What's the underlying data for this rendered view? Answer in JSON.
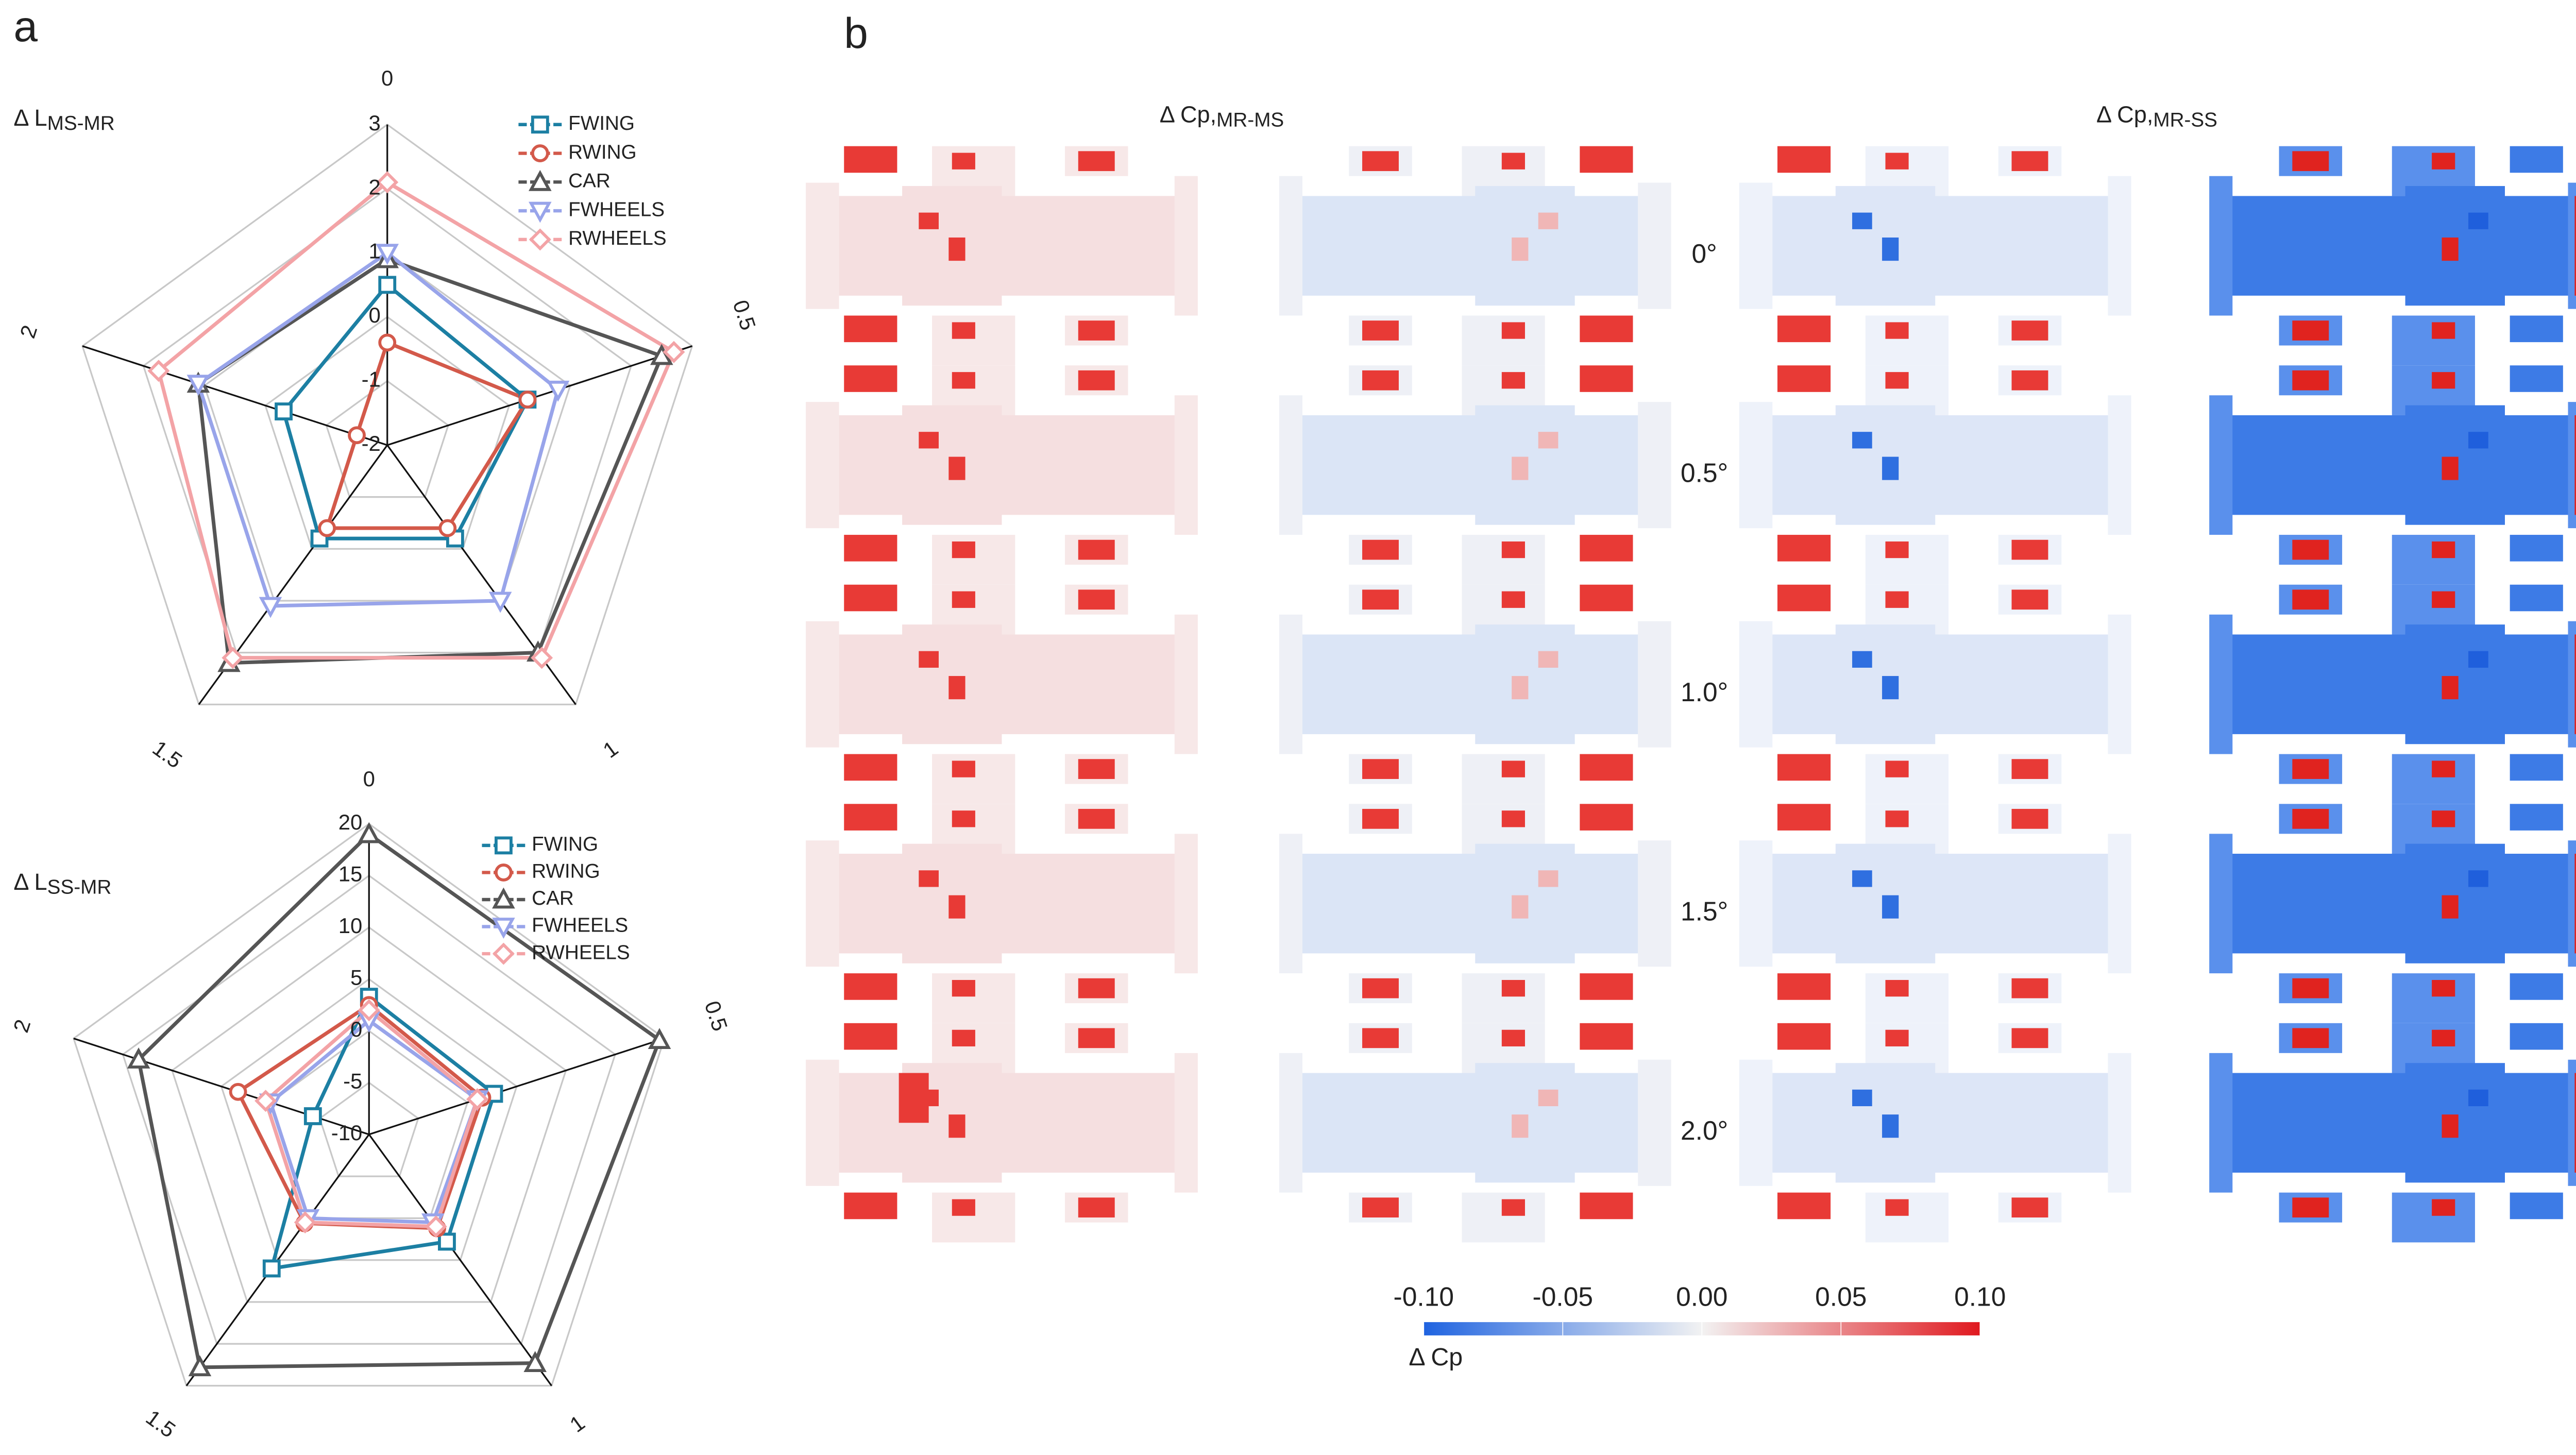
{
  "chart_data": [
    {
      "type": "radar",
      "title_main": "Δ L",
      "title_sub": "MS-MR",
      "categories": [
        "0",
        "0.5",
        "1",
        "1.5",
        "2"
      ],
      "ylim": [
        -2,
        3
      ],
      "yticks": [
        -2,
        -1,
        0,
        1,
        2,
        3
      ],
      "grid": true,
      "series": [
        {
          "name": "FWING",
          "color": "#1c7fa3",
          "marker": "square",
          "values": [
            0.5,
            0.3,
            -0.2,
            -0.2,
            -0.3
          ]
        },
        {
          "name": "RWING",
          "color": "#d3594a",
          "marker": "circle",
          "values": [
            -0.4,
            0.3,
            -0.4,
            -0.4,
            -1.5
          ]
        },
        {
          "name": "CAR",
          "color": "#555555",
          "marker": "triangle-up",
          "values": [
            0.9,
            2.5,
            2.0,
            2.2,
            1.1
          ]
        },
        {
          "name": "FWHEELS",
          "color": "#98a4ea",
          "marker": "triangle-down",
          "values": [
            1.0,
            0.8,
            1.0,
            1.1,
            1.1
          ]
        },
        {
          "name": "RWHEELS",
          "color": "#f3a3a6",
          "marker": "diamond",
          "values": [
            2.1,
            2.7,
            2.1,
            2.1,
            1.75
          ]
        }
      ]
    },
    {
      "type": "radar",
      "title_main": "Δ L",
      "title_sub": "SS-MR",
      "categories": [
        "0",
        "0.5",
        "1",
        "1.5",
        "2"
      ],
      "ylim": [
        -10,
        20
      ],
      "yticks": [
        -10,
        -5,
        0,
        5,
        10,
        15,
        20
      ],
      "grid": true,
      "series": [
        {
          "name": "FWING",
          "color": "#1c7fa3",
          "marker": "square",
          "values": [
            3.3,
            2.7,
            2.8,
            6,
            -4.3
          ]
        },
        {
          "name": "RWING",
          "color": "#d3594a",
          "marker": "circle",
          "values": [
            2.5,
            1.5,
            1.2,
            0.6,
            3.3
          ]
        },
        {
          "name": "CAR",
          "color": "#555555",
          "marker": "triangle-up",
          "values": [
            19,
            19.5,
            17.3,
            17.8,
            13.4
          ]
        },
        {
          "name": "FWHEELS",
          "color": "#98a4ea",
          "marker": "triangle-down",
          "values": [
            1,
            1,
            0.5,
            0,
            0
          ]
        },
        {
          "name": "RWHEELS",
          "color": "#f3a3a6",
          "marker": "diamond",
          "values": [
            2,
            1,
            1,
            0.5,
            0.5
          ]
        }
      ]
    }
  ],
  "panel_labels": [
    "a",
    "b"
  ],
  "contour_panel": {
    "columns": [
      {
        "main": "Δ Cp,",
        "sub": "MR-MS"
      },
      {
        "main": "Δ Cp,",
        "sub": "MR-SS"
      }
    ],
    "rows": [
      "0°",
      "0.5°",
      "1.0°",
      "1.5°",
      "2.0°"
    ],
    "colorbar": {
      "title": "Δ Cp",
      "lim": [
        -0.1,
        0.1
      ],
      "ticks": [
        {
          "value": -0.1,
          "label": "-0.10"
        },
        {
          "value": -0.05,
          "label": "-0.05"
        },
        {
          "value": 0,
          "label": "0.00"
        },
        {
          "value": 0.05,
          "label": "0.05"
        },
        {
          "value": 0.1,
          "label": "0.10"
        }
      ]
    }
  }
}
